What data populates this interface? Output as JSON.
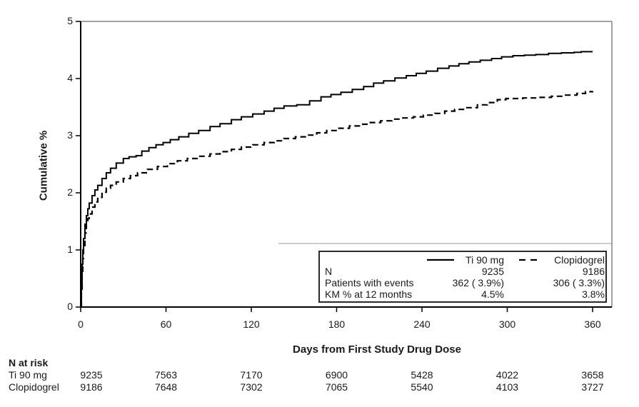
{
  "figure": {
    "y_axis_title": "Cumulative %",
    "x_axis_title": "Days from First Study Drug Dose"
  },
  "colors": {
    "curve": "#000000",
    "frame_gray": "#848484",
    "text": "#1a1a1a"
  },
  "chart_data": {
    "type": "line",
    "subtype": "kaplan-meier cumulative incidence (step curves)",
    "title": "",
    "xlabel": "Days from First Study Drug Dose",
    "ylabel": "Cumulative %",
    "xlim": [
      0,
      374
    ],
    "ylim": [
      0,
      5
    ],
    "xticks": [
      0,
      60,
      120,
      180,
      240,
      300,
      360
    ],
    "yticks": [
      0,
      1,
      2,
      3,
      4,
      5
    ],
    "grid": false,
    "legend_position": "boxed, inside lower-right",
    "series": [
      {
        "name": "Ti 90 mg",
        "style": "solid",
        "points": [
          [
            0,
            0
          ],
          [
            0.5,
            0.4
          ],
          [
            1,
            0.75
          ],
          [
            1.5,
            1.0
          ],
          [
            2,
            1.2
          ],
          [
            3,
            1.45
          ],
          [
            4,
            1.6
          ],
          [
            5,
            1.72
          ],
          [
            6,
            1.82
          ],
          [
            8,
            1.95
          ],
          [
            10,
            2.05
          ],
          [
            12,
            2.13
          ],
          [
            15,
            2.25
          ],
          [
            18,
            2.35
          ],
          [
            21,
            2.43
          ],
          [
            25,
            2.52
          ],
          [
            30,
            2.6
          ],
          [
            34,
            2.63
          ],
          [
            39,
            2.65
          ],
          [
            43,
            2.73
          ],
          [
            48,
            2.79
          ],
          [
            53,
            2.84
          ],
          [
            58,
            2.88
          ],
          [
            63,
            2.93
          ],
          [
            69,
            2.98
          ],
          [
            76,
            3.04
          ],
          [
            83,
            3.09
          ],
          [
            91,
            3.16
          ],
          [
            98,
            3.21
          ],
          [
            106,
            3.28
          ],
          [
            113,
            3.33
          ],
          [
            121,
            3.38
          ],
          [
            129,
            3.43
          ],
          [
            136,
            3.48
          ],
          [
            143,
            3.52
          ],
          [
            152,
            3.54
          ],
          [
            161,
            3.61
          ],
          [
            169,
            3.68
          ],
          [
            176,
            3.72
          ],
          [
            183,
            3.76
          ],
          [
            191,
            3.81
          ],
          [
            199,
            3.86
          ],
          [
            206,
            3.92
          ],
          [
            213,
            3.96
          ],
          [
            221,
            4.01
          ],
          [
            229,
            4.05
          ],
          [
            236,
            4.09
          ],
          [
            243,
            4.13
          ],
          [
            251,
            4.18
          ],
          [
            259,
            4.22
          ],
          [
            266,
            4.26
          ],
          [
            273,
            4.29
          ],
          [
            281,
            4.32
          ],
          [
            289,
            4.35
          ],
          [
            296,
            4.38
          ],
          [
            304,
            4.4
          ],
          [
            312,
            4.41
          ],
          [
            320,
            4.42
          ],
          [
            329,
            4.44
          ],
          [
            338,
            4.45
          ],
          [
            347,
            4.46
          ],
          [
            352,
            4.47
          ],
          [
            360,
            4.47
          ]
        ]
      },
      {
        "name": "Clopidogrel",
        "style": "dashed",
        "points": [
          [
            0,
            0
          ],
          [
            0.5,
            0.3
          ],
          [
            1,
            0.6
          ],
          [
            1.5,
            0.85
          ],
          [
            2,
            1.05
          ],
          [
            3,
            1.3
          ],
          [
            4,
            1.45
          ],
          [
            5,
            1.55
          ],
          [
            6,
            1.63
          ],
          [
            8,
            1.75
          ],
          [
            10,
            1.84
          ],
          [
            12,
            1.92
          ],
          [
            15,
            2.01
          ],
          [
            18,
            2.08
          ],
          [
            21,
            2.13
          ],
          [
            25,
            2.19
          ],
          [
            30,
            2.25
          ],
          [
            35,
            2.3
          ],
          [
            40,
            2.35
          ],
          [
            47,
            2.41
          ],
          [
            54,
            2.46
          ],
          [
            61,
            2.51
          ],
          [
            68,
            2.56
          ],
          [
            75,
            2.6
          ],
          [
            83,
            2.64
          ],
          [
            91,
            2.68
          ],
          [
            98,
            2.72
          ],
          [
            106,
            2.76
          ],
          [
            113,
            2.8
          ],
          [
            121,
            2.84
          ],
          [
            129,
            2.88
          ],
          [
            136,
            2.91
          ],
          [
            143,
            2.95
          ],
          [
            151,
            2.98
          ],
          [
            159,
            3.01
          ],
          [
            166,
            3.05
          ],
          [
            173,
            3.09
          ],
          [
            181,
            3.13
          ],
          [
            189,
            3.17
          ],
          [
            196,
            3.2
          ],
          [
            203,
            3.23
          ],
          [
            211,
            3.26
          ],
          [
            219,
            3.29
          ],
          [
            226,
            3.31
          ],
          [
            234,
            3.33
          ],
          [
            241,
            3.36
          ],
          [
            249,
            3.39
          ],
          [
            256,
            3.43
          ],
          [
            263,
            3.46
          ],
          [
            271,
            3.49
          ],
          [
            279,
            3.54
          ],
          [
            286,
            3.58
          ],
          [
            293,
            3.63
          ],
          [
            299,
            3.65
          ],
          [
            311,
            3.66
          ],
          [
            321,
            3.67
          ],
          [
            331,
            3.69
          ],
          [
            341,
            3.71
          ],
          [
            349,
            3.74
          ],
          [
            355,
            3.77
          ],
          [
            360,
            3.78
          ]
        ]
      }
    ]
  },
  "legend_table": {
    "series_labels": {
      "ti": "Ti 90 mg",
      "clo": "Clopidogrel"
    },
    "rows": [
      {
        "label": "N",
        "ti": "9235",
        "clo": "9186"
      },
      {
        "label": "Patients with events",
        "ti": "362 ( 3.9%)",
        "clo": "306 ( 3.3%)"
      },
      {
        "label": "KM % at 12 months",
        "ti": "4.5%",
        "clo": "3.8%"
      }
    ]
  },
  "n_at_risk": {
    "header": "N at risk",
    "rows": [
      {
        "label": "Ti 90 mg",
        "values": [
          "9235",
          "7563",
          "7170",
          "6900",
          "5428",
          "4022",
          "3658"
        ]
      },
      {
        "label": "Clopidogrel",
        "values": [
          "9186",
          "7648",
          "7302",
          "7065",
          "5540",
          "4103",
          "3727"
        ]
      }
    ]
  }
}
